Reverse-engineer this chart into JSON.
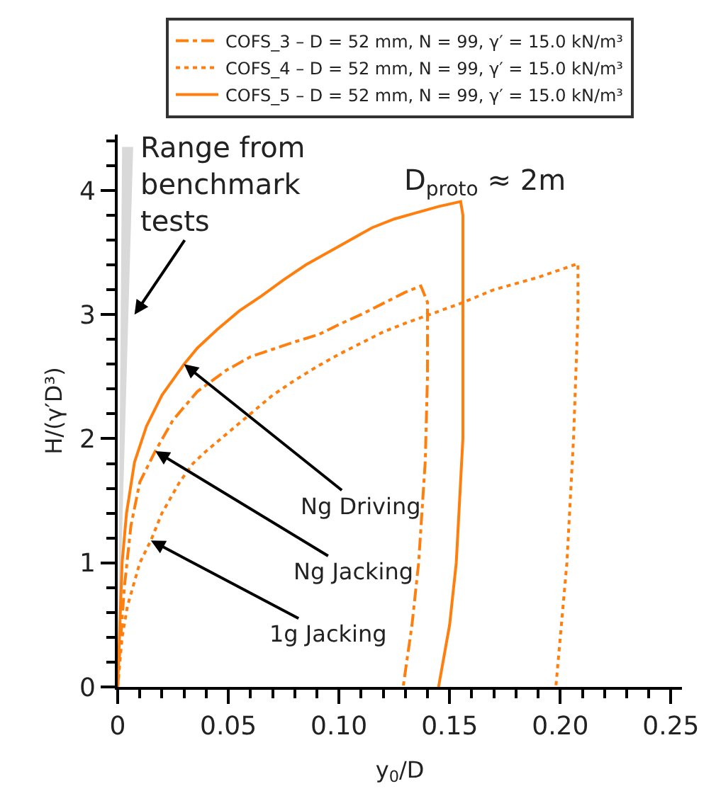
{
  "chart_data": {
    "type": "line",
    "xlabel": "y$_{0}$/D",
    "ylabel": "H/(γ′D³)",
    "xlim": [
      0,
      0.255
    ],
    "ylim": [
      0,
      4.45
    ],
    "xticks": [
      0,
      {
        "value": 0.01,
        "label": null
      },
      {
        "value": 0.02,
        "label": null
      },
      {
        "value": 0.03,
        "label": null
      },
      {
        "value": 0.04,
        "label": null
      },
      {
        "value": 0.05,
        "label": "0.05"
      },
      {
        "value": 0.06,
        "label": null
      },
      {
        "value": 0.07,
        "label": null
      },
      {
        "value": 0.08,
        "label": null
      },
      {
        "value": 0.09,
        "label": null
      },
      {
        "value": 0.1,
        "label": "0.10"
      },
      {
        "value": 0.11,
        "label": null
      },
      {
        "value": 0.12,
        "label": null
      },
      {
        "value": 0.13,
        "label": null
      },
      {
        "value": 0.14,
        "label": null
      },
      {
        "value": 0.15,
        "label": "0.15"
      },
      {
        "value": 0.16,
        "label": null
      },
      {
        "value": 0.17,
        "label": null
      },
      {
        "value": 0.18,
        "label": null
      },
      {
        "value": 0.19,
        "label": null
      },
      {
        "value": 0.2,
        "label": "0.20"
      },
      {
        "value": 0.21,
        "label": null
      },
      {
        "value": 0.22,
        "label": null
      },
      {
        "value": 0.23,
        "label": null
      },
      {
        "value": 0.24,
        "label": null
      },
      {
        "value": 0.25,
        "label": "0.25"
      }
    ],
    "yticks": [
      0,
      {
        "value": 0.2,
        "label": null
      },
      {
        "value": 0.4,
        "label": null
      },
      {
        "value": 0.6,
        "label": null
      },
      {
        "value": 0.8,
        "label": null
      },
      1,
      {
        "value": 1.2,
        "label": null
      },
      {
        "value": 1.4,
        "label": null
      },
      {
        "value": 1.6,
        "label": null
      },
      {
        "value": 1.8,
        "label": null
      },
      2,
      {
        "value": 2.2,
        "label": null
      },
      {
        "value": 2.4,
        "label": null
      },
      {
        "value": 2.6,
        "label": null
      },
      {
        "value": 2.8,
        "label": null
      },
      3,
      {
        "value": 3.2,
        "label": null
      },
      {
        "value": 3.4,
        "label": null
      },
      {
        "value": 3.6,
        "label": null
      },
      {
        "value": 3.8,
        "label": null
      },
      4,
      {
        "value": 4.2,
        "label": null
      },
      {
        "value": 4.4,
        "label": null
      }
    ],
    "legend": "top",
    "marker": "none",
    "series": [
      {
        "type": "area",
        "color": "#d9d9d9",
        "x": [
          0,
          0.002,
          0.007,
          0
        ],
        "values": [
          0,
          4.35,
          4.35,
          0
        ]
      },
      {
        "name": "COFS_3 – D = 52 mm, N = 99, γ′ = 15.0 kN/m³",
        "color": "#ff7f0e",
        "line_style": "dashdot",
        "x": [
          0,
          0.001,
          0.003,
          0.006,
          0.01,
          0.017,
          0.025,
          0.036,
          0.049,
          0.06,
          0.07,
          0.08,
          0.091,
          0.1,
          0.11,
          0.12,
          0.13,
          0.137,
          0.14,
          0.14,
          0.139,
          0.136,
          0.133,
          0.129
        ],
        "values": [
          0,
          0.3,
          0.8,
          1.3,
          1.65,
          1.9,
          2.15,
          2.38,
          2.55,
          2.66,
          2.72,
          2.78,
          2.84,
          2.92,
          3.0,
          3.09,
          3.18,
          3.23,
          3.1,
          2.5,
          1.82,
          1.0,
          0.5,
          0
        ]
      },
      {
        "name": "COFS_4 – D = 52 mm, N = 99, γ′ = 15.0 kN/m³",
        "color": "#ff7f0e",
        "line_style": "dotted",
        "x": [
          0,
          0.002,
          0.0044,
          0.01,
          0.015,
          0.02,
          0.028,
          0.034,
          0.04,
          0.05,
          0.06,
          0.07,
          0.08,
          0.09,
          0.1,
          0.11,
          0.12,
          0.13,
          0.141,
          0.155,
          0.17,
          0.19,
          0.208,
          0.208,
          0.206,
          0.203,
          0.199,
          0.198
        ],
        "values": [
          0,
          0.4,
          0.65,
          1.0,
          1.18,
          1.4,
          1.65,
          1.8,
          1.9,
          2.05,
          2.2,
          2.35,
          2.47,
          2.58,
          2.68,
          2.77,
          2.86,
          2.93,
          3.0,
          3.09,
          3.2,
          3.3,
          3.41,
          3.0,
          2.0,
          1.0,
          0.2,
          0
        ]
      },
      {
        "name": "COFS_5 – D = 52 mm, N = 99, γ′ = 15.0 kN/m³",
        "color": "#ff7f0e",
        "line_style": "solid",
        "x": [
          0,
          0.001,
          0.002,
          0.004,
          0.0076,
          0.013,
          0.02,
          0.03,
          0.036,
          0.045,
          0.055,
          0.065,
          0.075,
          0.085,
          0.095,
          0.105,
          0.115,
          0.125,
          0.135,
          0.145,
          0.155,
          0.156,
          0.156,
          0.153,
          0.15,
          0.145
        ],
        "values": [
          0,
          0.5,
          1.0,
          1.4,
          1.81,
          2.1,
          2.35,
          2.6,
          2.73,
          2.88,
          3.03,
          3.15,
          3.28,
          3.4,
          3.5,
          3.6,
          3.7,
          3.77,
          3.82,
          3.87,
          3.91,
          3.8,
          2.0,
          1.0,
          0.5,
          0
        ]
      }
    ],
    "annotations": [
      {
        "text": "Range from benchmark tests",
        "x": 0.0076,
        "y": 3.0
      },
      {
        "text": "Ng Driving",
        "x": 0.03,
        "y": 2.6
      },
      {
        "text": "Ng Jacking",
        "x": 0.017,
        "y": 1.9
      },
      {
        "text": "1g Jacking",
        "x": 0.015,
        "y": 1.18
      },
      "D$_{proto}$ ≈ 2m"
    ]
  }
}
